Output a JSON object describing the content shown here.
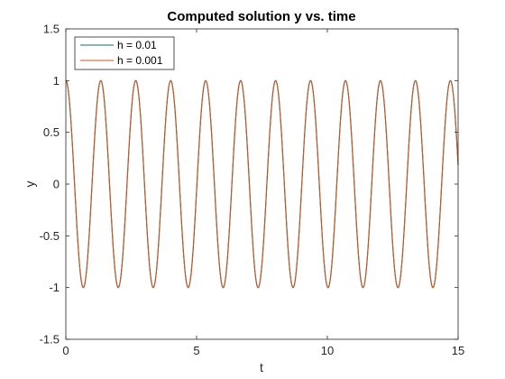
{
  "chart_data": {
    "type": "line",
    "title": "Computed solution y vs. time",
    "xlabel": "t",
    "ylabel": "y",
    "xlim": [
      0,
      15
    ],
    "ylim": [
      -1.5,
      1.5
    ],
    "xticks": [
      "0",
      "5",
      "10",
      "15"
    ],
    "yticks": [
      "-1.5",
      "-1",
      "-0.5",
      "0",
      "0.5",
      "1",
      "1.5"
    ],
    "grid": false,
    "legend_position": "top-left",
    "function": "y = cos(w t)",
    "omega": 4.7,
    "series": [
      {
        "name": "h = 0.01",
        "color": "#0a6e7a",
        "step": 0.01
      },
      {
        "name": "h = 0.001",
        "color": "#d95319",
        "step": 0.001
      }
    ]
  }
}
